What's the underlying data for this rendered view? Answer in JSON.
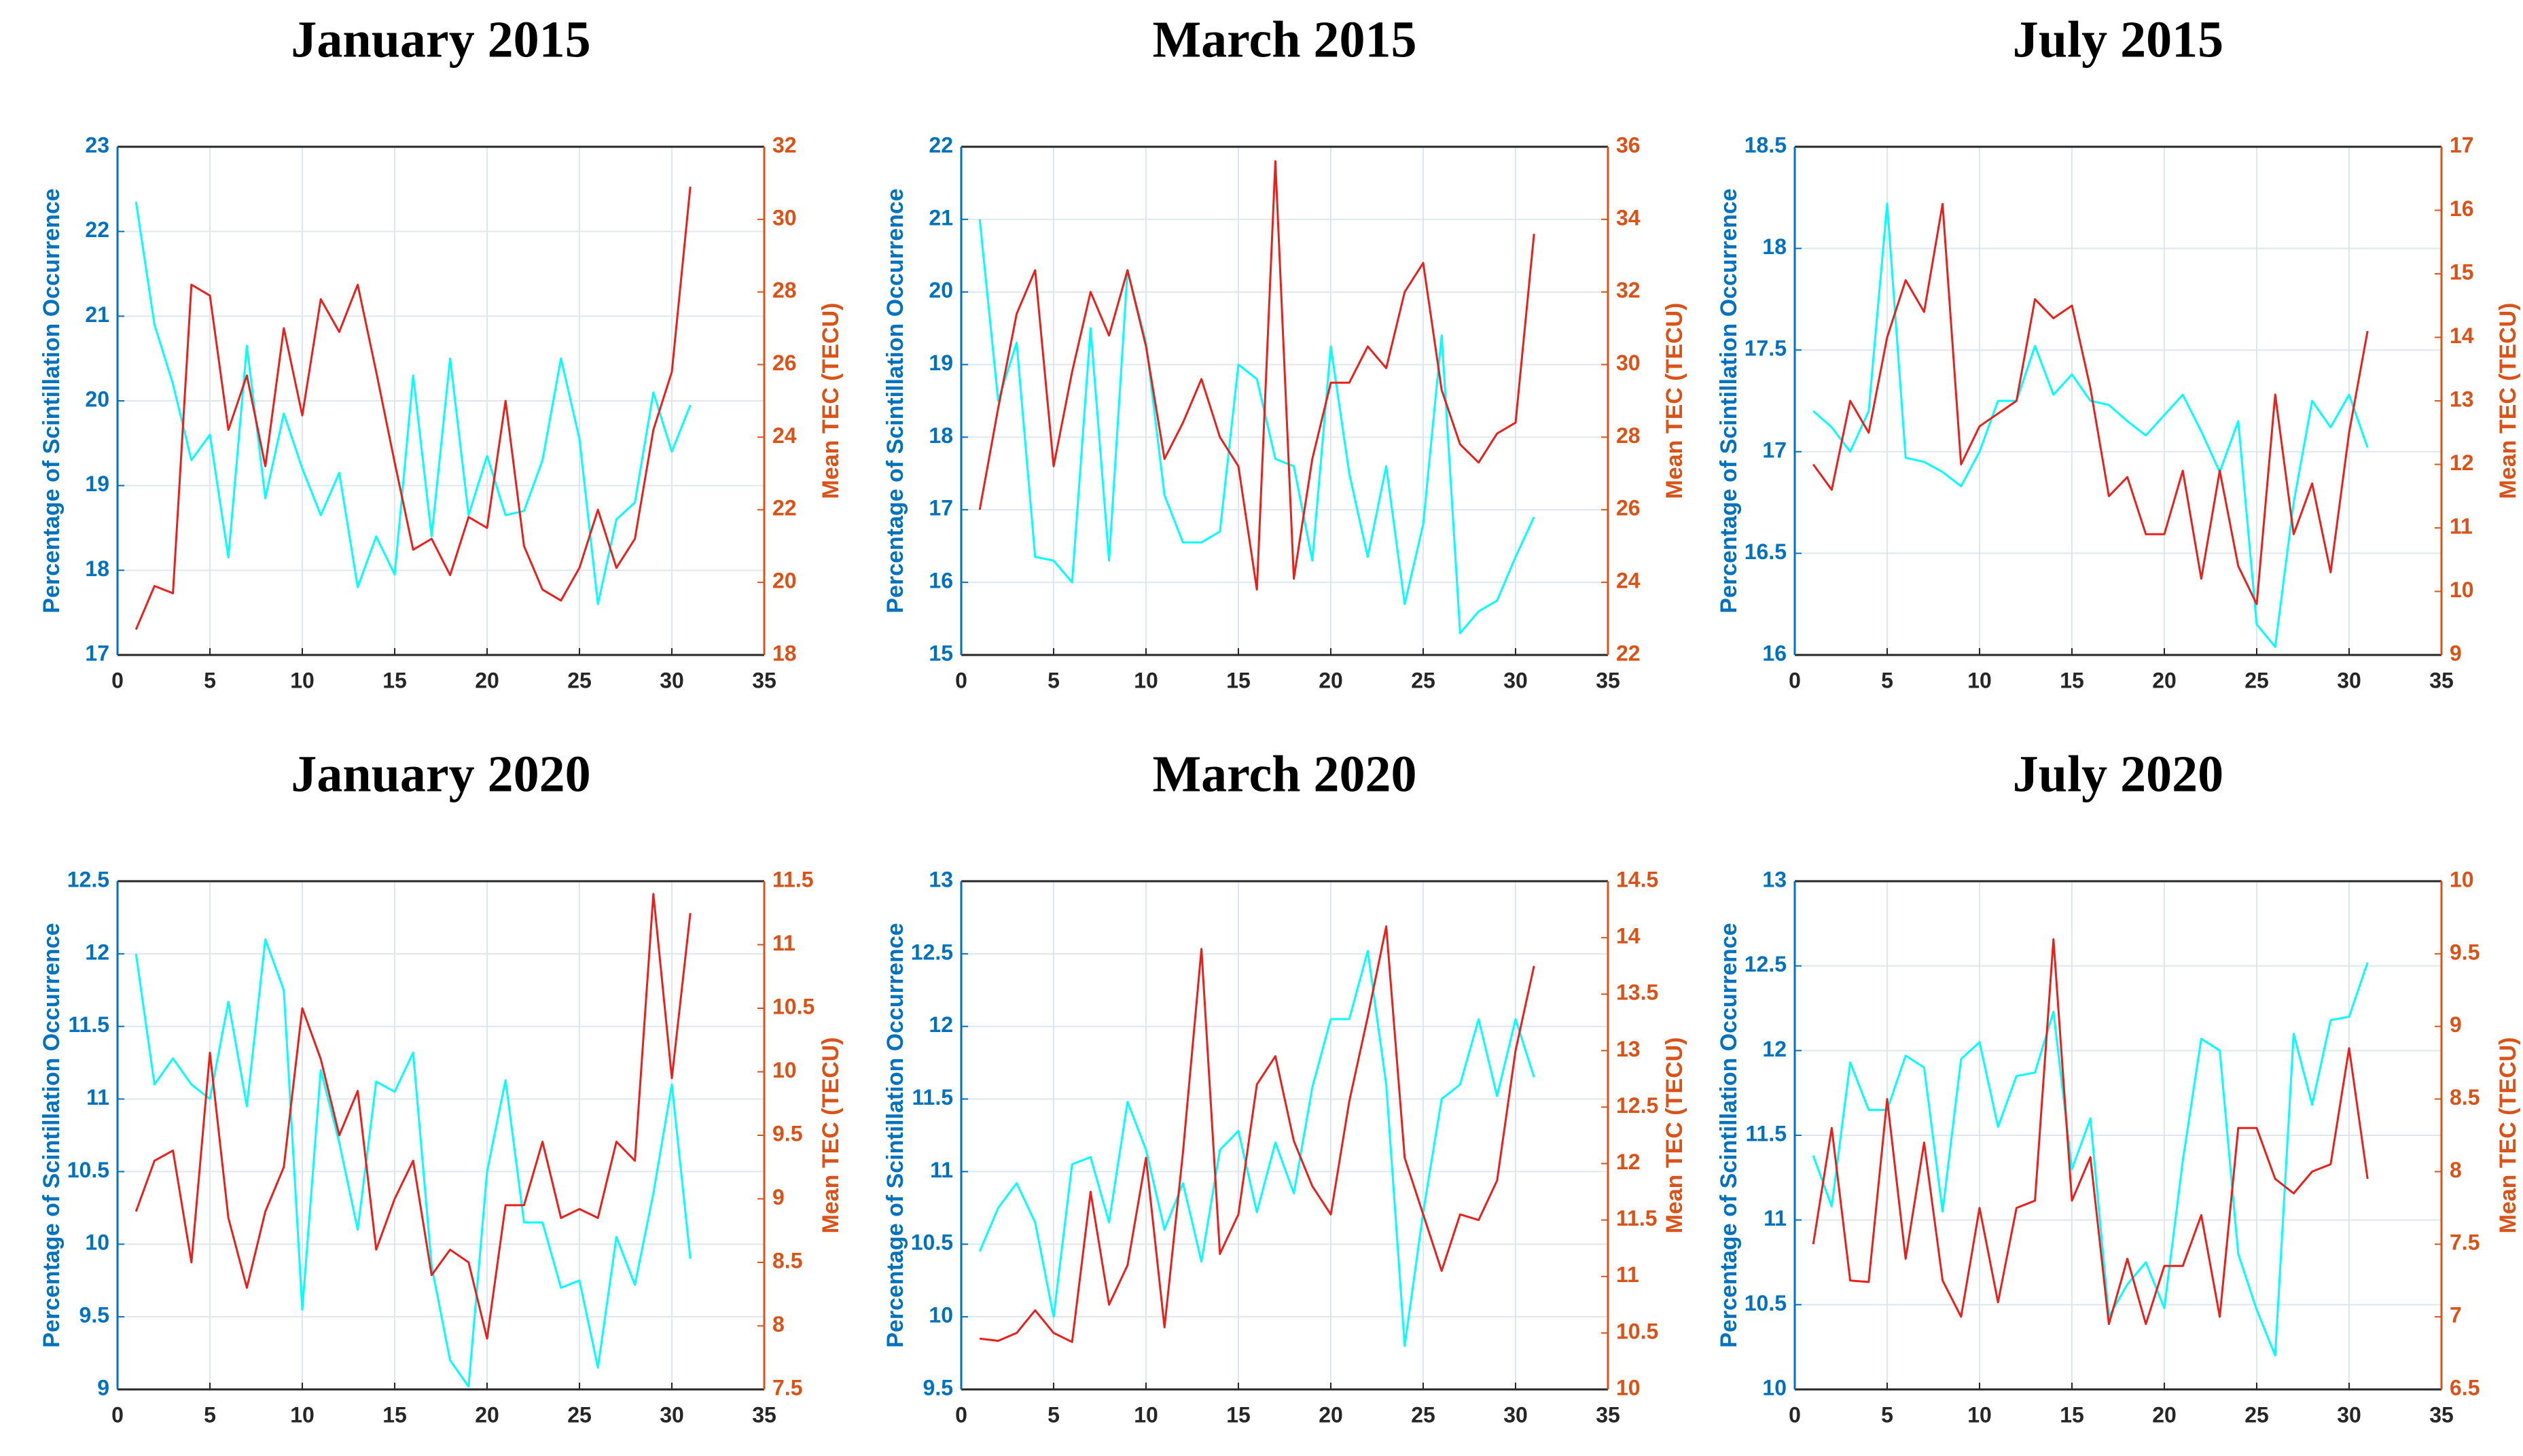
{
  "chart_data": [
    {
      "type": "line",
      "title": "January 2015",
      "y_label": "Percentage of Scintillation Occurrence",
      "y2_label": "Mean TEC (TECU)",
      "x": [
        1,
        2,
        3,
        4,
        5,
        6,
        7,
        8,
        9,
        10,
        11,
        12,
        13,
        14,
        15,
        16,
        17,
        18,
        19,
        20,
        21,
        22,
        23,
        24,
        25,
        26,
        27,
        28,
        29,
        30,
        31
      ],
      "xlim": [
        0,
        35
      ],
      "xticks": [
        0,
        5,
        10,
        15,
        20,
        25,
        30,
        35
      ],
      "ylim": [
        17,
        23
      ],
      "yticks": [
        17,
        18,
        19,
        20,
        21,
        22,
        23
      ],
      "y2lim": [
        18,
        32
      ],
      "y2ticks": [
        18,
        20,
        22,
        24,
        26,
        28,
        30,
        32
      ],
      "grid": true,
      "series": [
        {
          "color": "#00ffff",
          "values": [
            22.35,
            20.9,
            20.2,
            19.3,
            19.6,
            18.15,
            20.65,
            18.85,
            19.85,
            19.2,
            18.65,
            19.15,
            17.8,
            18.4,
            17.95,
            20.3,
            18.4,
            20.5,
            18.65,
            19.35,
            18.65,
            18.7,
            19.3,
            20.5,
            19.55,
            17.6,
            18.6,
            18.8,
            20.1,
            19.4,
            19.95
          ]
        },
        {
          "color": "#e8201c",
          "axis": "y2",
          "values": [
            18.7,
            19.9,
            19.7,
            28.2,
            27.9,
            24.2,
            25.7,
            23.2,
            27,
            24.6,
            27.8,
            26.9,
            28.2,
            25.8,
            23.3,
            20.9,
            21.2,
            20.2,
            21.8,
            21.5,
            25,
            21,
            19.8,
            19.5,
            20.4,
            22,
            20.4,
            21.2,
            24.2,
            25.8,
            30.9
          ]
        }
      ]
    },
    {
      "type": "line",
      "title": "March 2015",
      "y_label": "Percentage of Scintillation Occurrence",
      "y2_label": "Mean TEC (TECU)",
      "x": [
        1,
        2,
        3,
        4,
        5,
        6,
        7,
        8,
        9,
        10,
        11,
        12,
        13,
        14,
        15,
        16,
        17,
        18,
        19,
        20,
        21,
        22,
        23,
        24,
        25,
        26,
        27,
        28,
        29,
        30,
        31
      ],
      "xlim": [
        0,
        35
      ],
      "xticks": [
        0,
        5,
        10,
        15,
        20,
        25,
        30,
        35
      ],
      "ylim": [
        15,
        22
      ],
      "yticks": [
        15,
        16,
        17,
        18,
        19,
        20,
        21,
        22
      ],
      "y2lim": [
        22,
        36
      ],
      "y2ticks": [
        22,
        24,
        26,
        28,
        30,
        32,
        34,
        36
      ],
      "grid": true,
      "series": [
        {
          "color": "#00ffff",
          "values": [
            21,
            18.5,
            19.3,
            16.35,
            16.3,
            16,
            19.5,
            16.3,
            20.3,
            19.3,
            17.2,
            16.55,
            16.55,
            16.7,
            19,
            18.8,
            17.7,
            17.6,
            16.3,
            19.25,
            17.5,
            16.35,
            17.6,
            15.7,
            16.8,
            19.4,
            15.3,
            15.6,
            15.75,
            16.35,
            16.9
          ]
        },
        {
          "color": "#e8201c",
          "axis": "y2",
          "values": [
            26,
            28.8,
            31.4,
            32.6,
            27.2,
            29.8,
            32,
            30.8,
            32.6,
            30.5,
            27.4,
            28.4,
            29.6,
            28,
            27.2,
            23.8,
            35.6,
            24.1,
            27.4,
            29.5,
            29.5,
            30.5,
            29.9,
            32,
            32.8,
            29.3,
            27.8,
            27.3,
            28.1,
            28.4,
            33.6
          ]
        }
      ]
    },
    {
      "type": "line",
      "title": "July 2015",
      "y_label": "Percentage of Scintillation Occurrence",
      "y2_label": "Mean TEC (TECU)",
      "x": [
        1,
        2,
        3,
        4,
        5,
        6,
        7,
        8,
        9,
        10,
        11,
        12,
        13,
        14,
        15,
        16,
        17,
        18,
        19,
        20,
        21,
        22,
        23,
        24,
        25,
        26,
        27,
        28,
        29,
        30,
        31
      ],
      "xlim": [
        0,
        35
      ],
      "xticks": [
        0,
        5,
        10,
        15,
        20,
        25,
        30,
        35
      ],
      "ylim": [
        16,
        18.5
      ],
      "yticks": [
        16,
        16.5,
        17,
        17.5,
        18,
        18.5
      ],
      "y2lim": [
        9,
        17
      ],
      "y2ticks": [
        9,
        10,
        11,
        12,
        13,
        14,
        15,
        16,
        17
      ],
      "grid": true,
      "series": [
        {
          "color": "#00ffff",
          "values": [
            17.2,
            17.12,
            17,
            17.2,
            18.22,
            16.97,
            16.95,
            16.9,
            16.83,
            17,
            17.25,
            17.25,
            17.52,
            17.28,
            17.38,
            17.25,
            17.23,
            17.15,
            17.08,
            17.18,
            17.28,
            17.1,
            16.9,
            17.15,
            16.15,
            16.04,
            16.75,
            17.25,
            17.12,
            17.28,
            17.02
          ]
        },
        {
          "color": "#e8201c",
          "axis": "y2",
          "values": [
            12,
            11.6,
            13,
            12.5,
            14,
            14.9,
            14.4,
            16.1,
            12,
            12.6,
            12.8,
            13,
            14.6,
            14.3,
            14.5,
            13.2,
            11.5,
            11.8,
            10.9,
            10.9,
            11.9,
            10.2,
            11.9,
            10.4,
            9.8,
            13.1,
            10.9,
            11.7,
            10.3,
            12.5,
            14.1
          ]
        }
      ]
    },
    {
      "type": "line",
      "title": "January 2020",
      "y_label": "Percentage of Scintillation Occurrence",
      "y2_label": "Mean TEC (TECU)",
      "x": [
        1,
        2,
        3,
        4,
        5,
        6,
        7,
        8,
        9,
        10,
        11,
        12,
        13,
        14,
        15,
        16,
        17,
        18,
        19,
        20,
        21,
        22,
        23,
        24,
        25,
        26,
        27,
        28,
        29,
        30,
        31
      ],
      "xlim": [
        0,
        35
      ],
      "xticks": [
        0,
        5,
        10,
        15,
        20,
        25,
        30,
        35
      ],
      "ylim": [
        9,
        12.5
      ],
      "yticks": [
        9,
        9.5,
        10,
        10.5,
        11,
        11.5,
        12,
        12.5
      ],
      "y2lim": [
        7.5,
        11.5
      ],
      "y2ticks": [
        7.5,
        8,
        8.5,
        9,
        9.5,
        10,
        10.5,
        11,
        11.5
      ],
      "grid": true,
      "series": [
        {
          "color": "#00ffff",
          "values": [
            12,
            11.1,
            11.28,
            11.1,
            11,
            11.67,
            10.95,
            12.1,
            11.75,
            9.55,
            11.2,
            10.7,
            10.1,
            11.12,
            11.05,
            11.32,
            9.85,
            9.2,
            9.02,
            10.5,
            11.13,
            10.15,
            10.15,
            9.7,
            9.75,
            9.15,
            10.05,
            9.72,
            10.35,
            11.1,
            9.9
          ]
        },
        {
          "color": "#e8201c",
          "axis": "y2",
          "values": [
            8.9,
            9.3,
            9.38,
            8.5,
            10.15,
            8.85,
            8.3,
            8.9,
            9.25,
            10.5,
            10.1,
            9.5,
            9.85,
            8.6,
            9,
            9.3,
            8.4,
            8.6,
            8.5,
            7.9,
            8.95,
            8.95,
            9.45,
            8.85,
            8.92,
            8.85,
            9.45,
            9.3,
            11.4,
            9.95,
            11.25
          ]
        }
      ]
    },
    {
      "type": "line",
      "title": "March 2020",
      "y_label": "Percentage of Scintillation Occurrence",
      "y2_label": "Mean TEC (TECU)",
      "x": [
        1,
        2,
        3,
        4,
        5,
        6,
        7,
        8,
        9,
        10,
        11,
        12,
        13,
        14,
        15,
        16,
        17,
        18,
        19,
        20,
        21,
        22,
        23,
        24,
        25,
        26,
        27,
        28,
        29,
        30,
        31
      ],
      "xlim": [
        0,
        35
      ],
      "xticks": [
        0,
        5,
        10,
        15,
        20,
        25,
        30,
        35
      ],
      "ylim": [
        9.5,
        13
      ],
      "yticks": [
        9.5,
        10,
        10.5,
        11,
        11.5,
        12,
        12.5,
        13
      ],
      "y2lim": [
        10,
        14.5
      ],
      "y2ticks": [
        10,
        10.5,
        11,
        11.5,
        12,
        12.5,
        13,
        13.5,
        14,
        14.5
      ],
      "grid": true,
      "series": [
        {
          "color": "#00ffff",
          "values": [
            10.45,
            10.75,
            10.92,
            10.65,
            10,
            11.05,
            11.1,
            10.65,
            11.48,
            11.15,
            10.6,
            10.92,
            10.38,
            11.15,
            11.28,
            10.72,
            11.2,
            10.85,
            11.58,
            12.05,
            12.05,
            12.52,
            11.6,
            9.8,
            10.72,
            11.5,
            11.6,
            12.05,
            11.52,
            12.05,
            11.65
          ]
        },
        {
          "color": "#e8201c",
          "axis": "y2",
          "values": [
            10.45,
            10.43,
            10.5,
            10.7,
            10.5,
            10.42,
            11.75,
            10.75,
            11.1,
            12.05,
            10.55,
            12.1,
            13.9,
            11.2,
            11.55,
            12.7,
            12.95,
            12.2,
            11.8,
            11.55,
            12.55,
            13.3,
            14.1,
            12.05,
            11.55,
            11.05,
            11.55,
            11.5,
            11.85,
            13,
            13.75
          ]
        }
      ]
    },
    {
      "type": "line",
      "title": "July 2020",
      "y_label": "Percentage of Scintillation Occurrence",
      "y2_label": "Mean TEC (TECU)",
      "x": [
        1,
        2,
        3,
        4,
        5,
        6,
        7,
        8,
        9,
        10,
        11,
        12,
        13,
        14,
        15,
        16,
        17,
        18,
        19,
        20,
        21,
        22,
        23,
        24,
        25,
        26,
        27,
        28,
        29,
        30,
        31
      ],
      "xlim": [
        0,
        35
      ],
      "xticks": [
        0,
        5,
        10,
        15,
        20,
        25,
        30,
        35
      ],
      "ylim": [
        10,
        13
      ],
      "yticks": [
        10,
        10.5,
        11,
        11.5,
        12,
        12.5,
        13
      ],
      "y2lim": [
        6.5,
        10
      ],
      "y2ticks": [
        6.5,
        7,
        7.5,
        8,
        8.5,
        9,
        9.5,
        10
      ],
      "grid": true,
      "series": [
        {
          "color": "#00ffff",
          "values": [
            11.38,
            11.08,
            11.93,
            11.65,
            11.65,
            11.97,
            11.9,
            11.05,
            11.95,
            12.05,
            11.55,
            11.85,
            11.87,
            12.23,
            11.3,
            11.6,
            10.43,
            10.62,
            10.75,
            10.48,
            11.35,
            12.07,
            12,
            10.8,
            10.47,
            10.2,
            12.1,
            11.68,
            12.18,
            12.2,
            12.52
          ]
        },
        {
          "color": "#e8201c",
          "axis": "y2",
          "values": [
            7.5,
            8.3,
            7.25,
            7.24,
            8.5,
            7.4,
            8.2,
            7.25,
            7,
            7.75,
            7.1,
            7.75,
            7.8,
            9.6,
            7.8,
            8.1,
            6.95,
            7.4,
            6.95,
            7.35,
            7.35,
            7.7,
            7,
            8.3,
            8.3,
            7.95,
            7.85,
            8,
            8.05,
            8.85,
            7.95
          ]
        }
      ]
    }
  ]
}
